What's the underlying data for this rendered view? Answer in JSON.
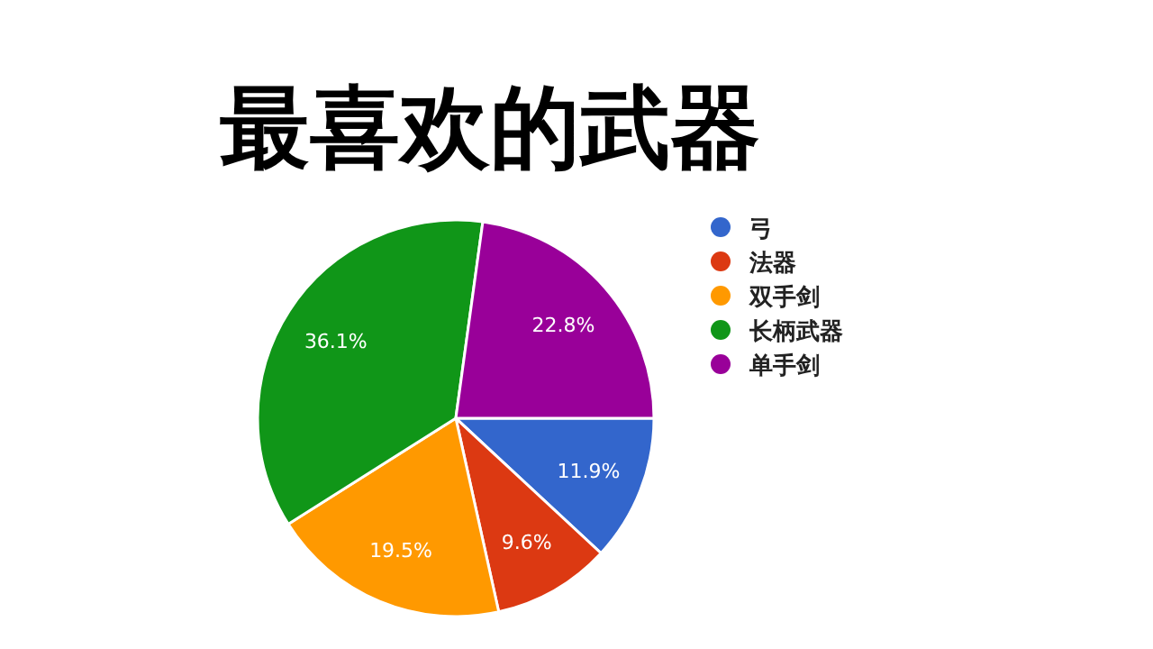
{
  "chart_data": {
    "type": "pie",
    "title": "最喜欢的武器",
    "categories": [
      "弓",
      "法器",
      "双手剑",
      "长柄武器",
      "单手剑"
    ],
    "values": [
      11.9,
      9.6,
      19.5,
      36.1,
      22.8
    ],
    "value_labels": [
      "11.9%",
      "9.6%",
      "19.5%",
      "36.1%",
      "22.8%"
    ],
    "colors": [
      "#3366cc",
      "#dc3912",
      "#ff9900",
      "#109618",
      "#990099"
    ],
    "legend": "right"
  }
}
